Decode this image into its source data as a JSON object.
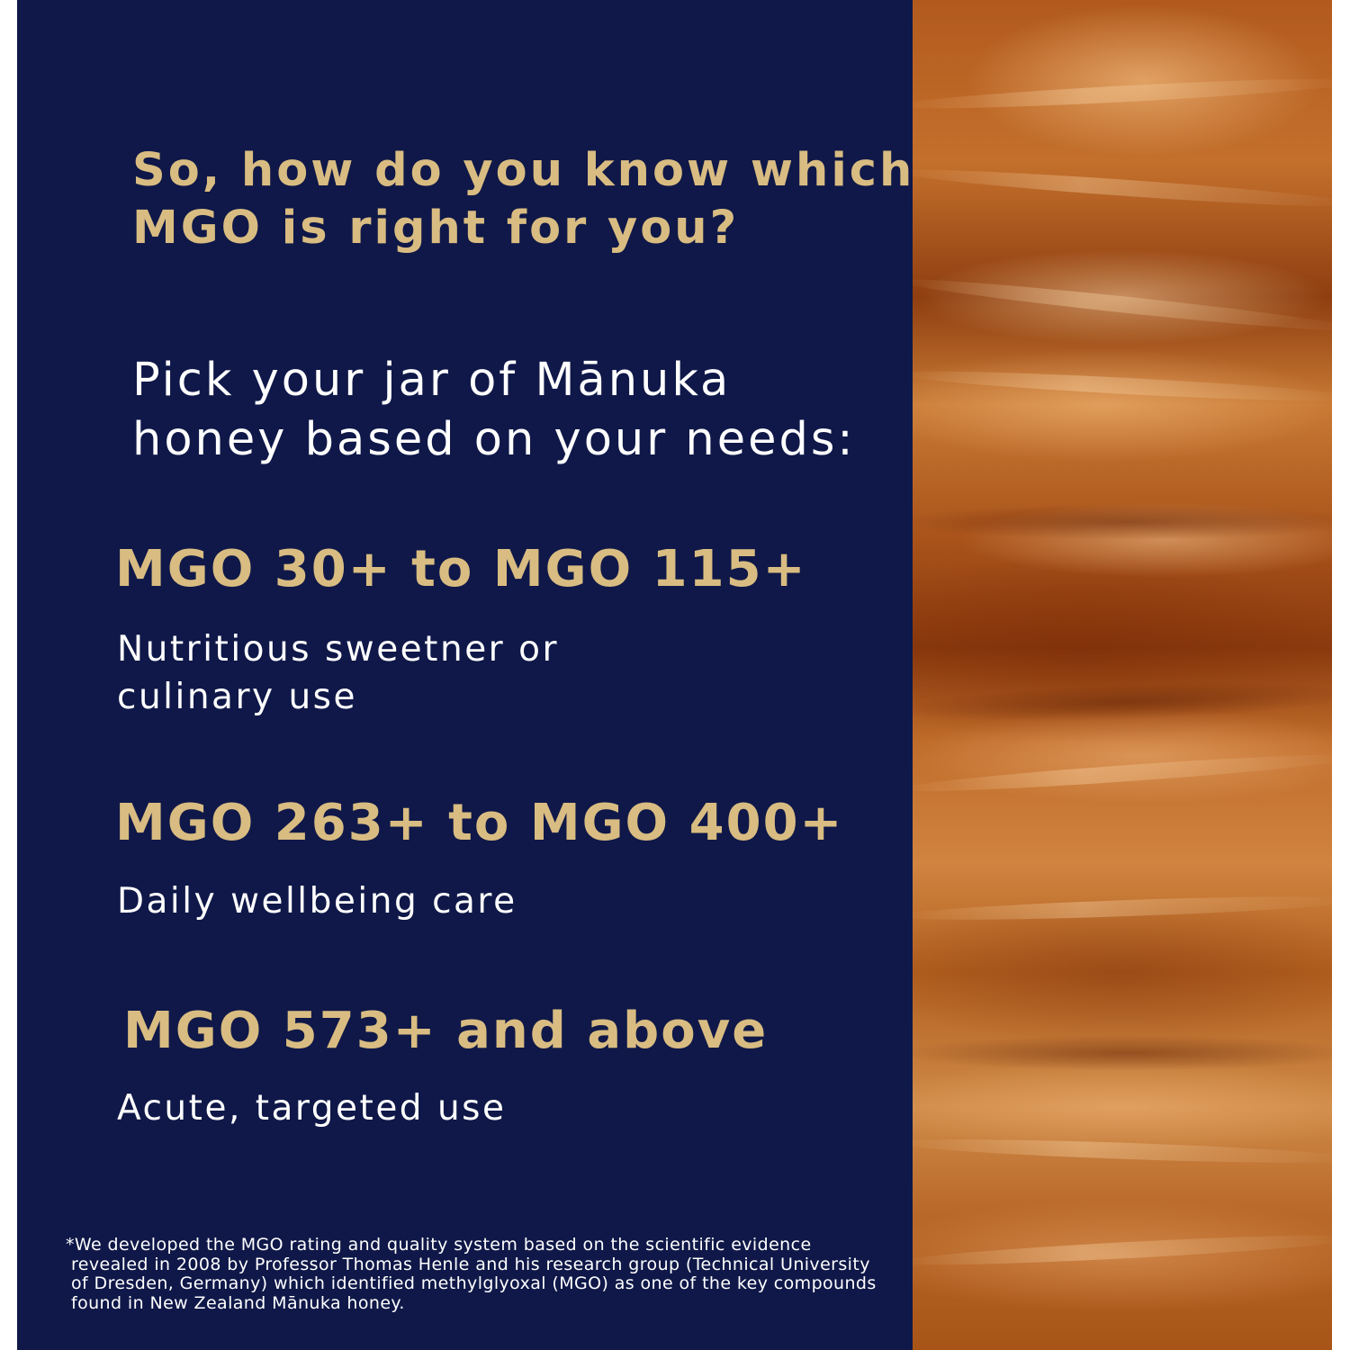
{
  "heading": {
    "line1": "So, how do you know which",
    "line2": "MGO is right for you?"
  },
  "subheading": {
    "line1": "Pick your jar of Mānuka",
    "line2": "honey based on your needs:"
  },
  "tiers": [
    {
      "range": "MGO 30+ to MGO 115+",
      "desc_line1": "Nutritious sweetner or",
      "desc_line2": "culinary use"
    },
    {
      "range": "MGO 263+ to MGO 400+",
      "desc_line1": "Daily wellbeing care"
    },
    {
      "range": "MGO 573+ and above",
      "desc_line1": "Acute, targeted use"
    }
  ],
  "footnote": {
    "line1": "*We developed the MGO rating and quality system based on the scientific evidence",
    "line2": "revealed in 2008 by Professor Thomas Henle and his research group (Technical University",
    "line3": "of Dresden, Germany) which identified methylglyoxal (MGO) as one of the key compounds",
    "line4": "found in New Zealand Mānuka honey."
  },
  "colors": {
    "panel": "#0f1848",
    "gold": "#d9bc82",
    "text": "#ffffff",
    "honey": "#b8621f"
  }
}
